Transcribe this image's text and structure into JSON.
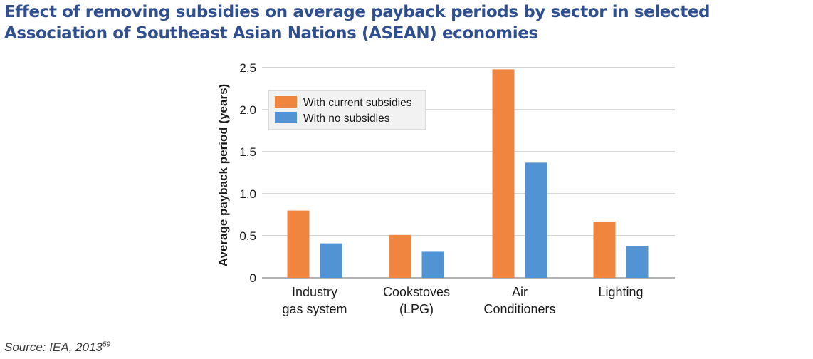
{
  "title": "Effect of removing subsidies on average payback periods by sector in selected Association of Southeast Asian Nations (ASEAN) economies",
  "source": {
    "text": "Source: IEA, 2013",
    "superscript": "59"
  },
  "colors": {
    "title": "#2f4f8f",
    "with_subsidies": "#f08540",
    "no_subsidies": "#5294d3",
    "grid": "#c8c8c8"
  },
  "chart_data": {
    "type": "bar",
    "categories": [
      [
        "Industry",
        "gas system"
      ],
      [
        "Cookstoves",
        "(LPG)"
      ],
      [
        "Air",
        "Conditioners"
      ],
      [
        "Lighting"
      ]
    ],
    "series": [
      {
        "name": "With current subsidies",
        "values": [
          0.8,
          0.51,
          2.48,
          0.67
        ]
      },
      {
        "name": "With no subsidies",
        "values": [
          0.41,
          0.31,
          1.37,
          0.38
        ]
      }
    ],
    "ylabel": "Average payback period (years)",
    "xlabel": "",
    "ylim": [
      0,
      2.5
    ],
    "yticks": [
      0,
      0.5,
      1.0,
      1.5,
      2.0,
      2.5
    ],
    "ytick_labels": [
      "0",
      "0.5",
      "1.0",
      "1.5",
      "2.0",
      "2.5"
    ],
    "grid": true,
    "legend_position": "top-left"
  }
}
